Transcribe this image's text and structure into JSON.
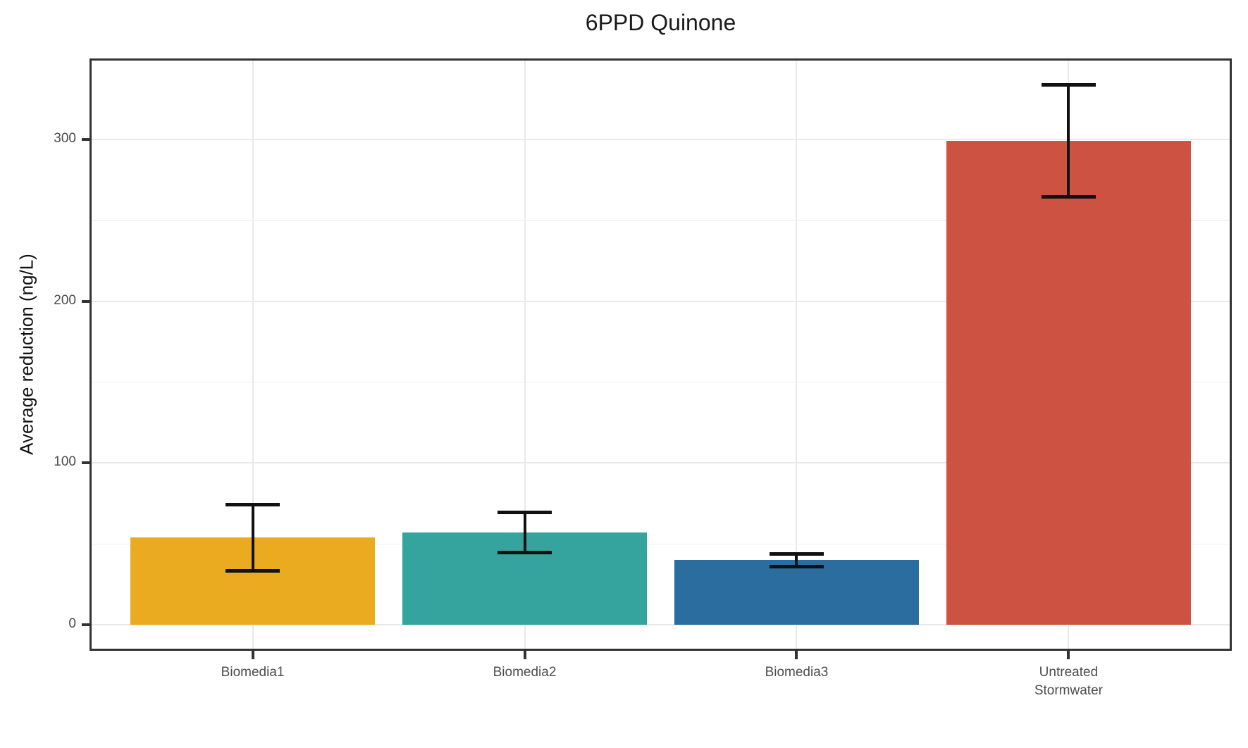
{
  "page_title": "6PPD Quinone",
  "chart_data": {
    "type": "bar",
    "title": "6PPD Quinone",
    "ylabel": "Average reduction (ng/L)",
    "xlabel": "",
    "categories": [
      "Biomedia1",
      "Biomedia2",
      "Biomedia3",
      "Untreated\nStormwater"
    ],
    "values": [
      54,
      57,
      40,
      299
    ],
    "error": [
      20.5,
      12.5,
      4,
      34.5
    ],
    "bar_colors": [
      "#EBAB21",
      "#35A39E",
      "#2A6D9E",
      "#CE5241"
    ],
    "error_bar_color": "#111111",
    "yticks": [
      0,
      100,
      200,
      300
    ],
    "yticks_minor": [
      50,
      150,
      250
    ],
    "ylim": [
      -16,
      350
    ],
    "grid": true,
    "grid_major_color": "#E9E9E9",
    "grid_minor_color": "#F2F2F2",
    "axis_text_color": "#4d4d4d",
    "panel_border_color": "#333333",
    "legend": false,
    "legend_position": "none"
  }
}
